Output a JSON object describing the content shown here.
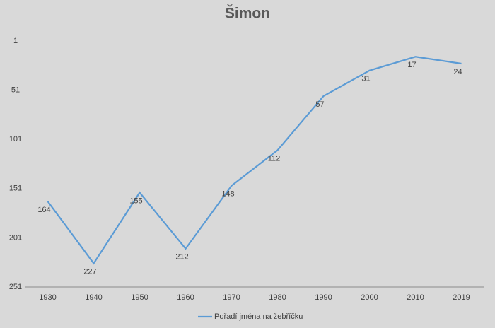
{
  "chart_data": {
    "type": "line",
    "title": "Šimon",
    "categories": [
      "1930",
      "1940",
      "1950",
      "1960",
      "1970",
      "1980",
      "1990",
      "2000",
      "2010",
      "2019"
    ],
    "series": [
      {
        "name": "Pořadí jména na žebříčku",
        "color": "#5b9bd5",
        "values": [
          164,
          227,
          155,
          212,
          148,
          112,
          57,
          31,
          17,
          24
        ]
      }
    ],
    "ylim": [
      1,
      251
    ],
    "yticks": [
      1,
      51,
      101,
      151,
      201,
      251
    ],
    "y_reversed": true,
    "grid": false,
    "data_labels": true,
    "legend": "bottom"
  }
}
